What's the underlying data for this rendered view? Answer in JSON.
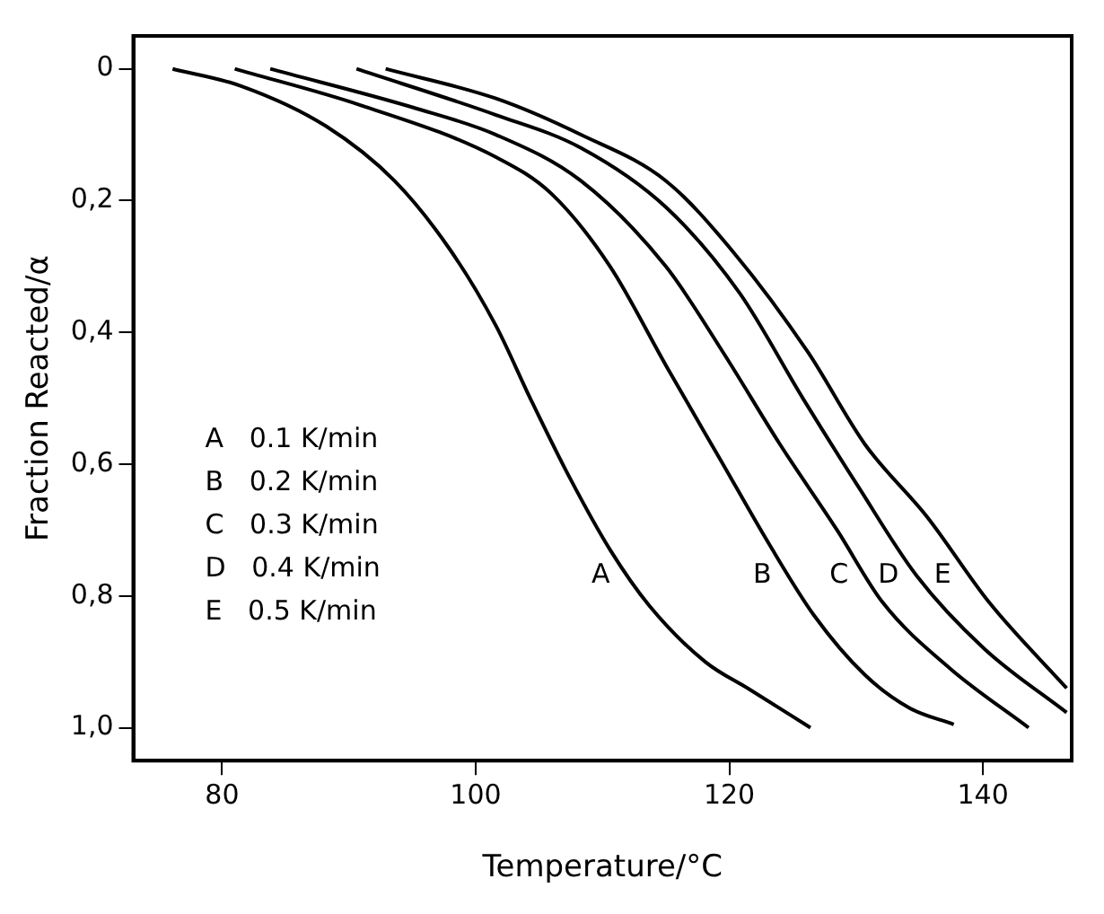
{
  "chart_data": {
    "type": "line",
    "xlabel": "Temperature/°C",
    "ylabel": "Fraction Reacted/α",
    "xlim": [
      73,
      147
    ],
    "xticks": [
      80,
      100,
      120,
      140
    ],
    "ylim": [
      1.05,
      -0.05
    ],
    "yticks": [
      0,
      {
        "value": 0.2,
        "label": "0,2"
      },
      {
        "value": 0.4,
        "label": "0,4"
      },
      {
        "value": 0.6,
        "label": "0,6"
      },
      {
        "value": 0.8,
        "label": "0,8"
      },
      {
        "value": 1.0,
        "label": "1,0"
      }
    ],
    "grid": false,
    "legend": false,
    "marker": "none",
    "line_style": "solid",
    "series": [
      {
        "name": "A",
        "color": "#000000",
        "x": [
          76.1,
          81.5,
          88.2,
          93.6,
          98,
          101.6,
          104.3,
          107.4,
          110.6,
          113.7,
          118.1,
          121.7,
          126.4
        ],
        "values": [
          0,
          0.026,
          0.087,
          0.17,
          0.275,
          0.39,
          0.5,
          0.62,
          0.73,
          0.815,
          0.9,
          0.943,
          1.0
        ]
      },
      {
        "name": "B",
        "color": "#000000",
        "x": [
          81,
          90.9,
          101.6,
          106,
          110.6,
          115,
          119.5,
          123.1,
          126.7,
          130.7,
          134.2,
          137.7
        ],
        "values": [
          0,
          0.055,
          0.134,
          0.19,
          0.3,
          0.45,
          0.6,
          0.72,
          0.83,
          0.92,
          0.97,
          0.995
        ]
      },
      {
        "name": "C",
        "color": "#000000",
        "x": [
          83.8,
          95.3,
          101.6,
          108.3,
          115,
          119.5,
          124,
          128.5,
          132.1,
          137.4,
          143.6
        ],
        "values": [
          0,
          0.06,
          0.1,
          0.17,
          0.3,
          0.43,
          0.57,
          0.7,
          0.81,
          0.91,
          1.0
        ]
      },
      {
        "name": "D",
        "color": "#000000",
        "x": [
          90.6,
          101.6,
          108.3,
          115,
          120.8,
          125.8,
          130.2,
          134.8,
          140.1,
          146.6
        ],
        "values": [
          0,
          0.07,
          0.12,
          0.21,
          0.34,
          0.5,
          0.635,
          0.77,
          0.88,
          0.977
        ]
      },
      {
        "name": "E",
        "color": "#000000",
        "x": [
          92.9,
          101.6,
          108.3,
          115,
          120.4,
          126.2,
          130.7,
          135.6,
          140.5,
          146.6
        ],
        "values": [
          0,
          0.045,
          0.1,
          0.17,
          0.28,
          0.43,
          0.57,
          0.68,
          0.81,
          0.94
        ]
      }
    ],
    "annotations": [
      "A   0.1 K/min",
      "B   0.2 K/min",
      "C   0.3 K/min",
      "D   0.4 K/min",
      "E   0.5 K/min"
    ]
  }
}
